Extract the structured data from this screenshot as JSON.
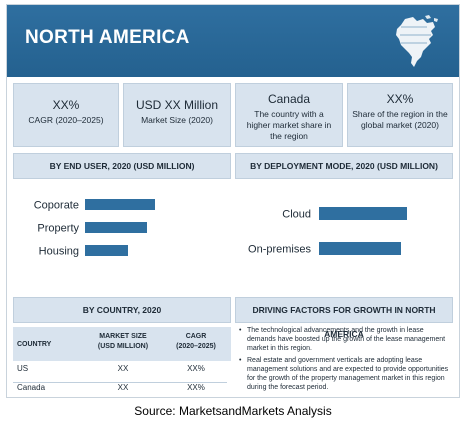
{
  "banner": {
    "title": "NORTH AMERICA",
    "map_icon": "north-america-map-icon"
  },
  "kpis": [
    {
      "big": "XX%",
      "small": "CAGR (2020–2025)"
    },
    {
      "big": "USD XX Million",
      "small": "Market Size (2020)"
    },
    {
      "big": "Canada",
      "small": "The country with a higher market share in the region"
    },
    {
      "big": "XX%",
      "small": "Share of the region in the global market (2020)"
    }
  ],
  "sections": {
    "end_user": "BY END USER, 2020 (USD MILLION)",
    "deployment": "BY DEPLOYMENT MODE, 2020 (USD MILLION)",
    "country": "BY COUNTRY, 2020",
    "drivers": "DRIVING FACTORS FOR GROWTH IN NORTH AMERICA"
  },
  "chart_data": [
    {
      "type": "bar",
      "orientation": "horizontal",
      "title": "BY END USER, 2020 (USD MILLION)",
      "categories": [
        "Coporate",
        "Property",
        "Housing"
      ],
      "values": [
        70,
        62,
        43
      ],
      "xlim": [
        0,
        100
      ],
      "grid": false,
      "color": "#2f6fa0"
    },
    {
      "type": "bar",
      "orientation": "horizontal",
      "title": "BY DEPLOYMENT MODE, 2020 (USD MILLION)",
      "categories": [
        "Cloud",
        "On-premises"
      ],
      "values": [
        88,
        82
      ],
      "xlim": [
        0,
        100
      ],
      "grid": false,
      "color": "#2f6fa0"
    },
    {
      "type": "table",
      "title": "BY COUNTRY, 2020",
      "columns": [
        "COUNTRY",
        "MARKET SIZE (USD MILLION)",
        "CAGR (2020–2025)"
      ],
      "rows": [
        [
          "US",
          "XX",
          "XX%"
        ],
        [
          "Canada",
          "XX",
          "XX%"
        ]
      ]
    }
  ],
  "table_headers": {
    "country": "COUNTRY",
    "market_size_1": "MARKET SIZE",
    "market_size_2": "(USD MILLION)",
    "cagr_1": "CAGR",
    "cagr_2": "(2020–2025)"
  },
  "drivers": [
    "The technological advancements and the growth in lease demands have boosted up the growth of the lease management market in this region.",
    "Real estate and government verticals are adopting lease management solutions and are expected to provide opportunities for the growth of the property management market in this region during the forecast period."
  ],
  "source": "Source: MarketsandMarkets Analysis"
}
